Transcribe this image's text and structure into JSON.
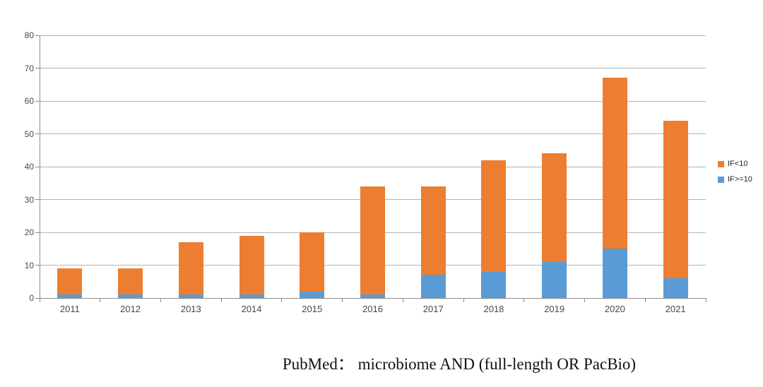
{
  "chart_data": {
    "type": "bar",
    "stacked": true,
    "title": "",
    "xlabel": "",
    "ylabel": "",
    "categories": [
      "2011",
      "2012",
      "2013",
      "2014",
      "2015",
      "2016",
      "2017",
      "2018",
      "2019",
      "2020",
      "2021"
    ],
    "series": [
      {
        "name": "IF>=10",
        "color": "#5B9BD5",
        "values": [
          1,
          1,
          1,
          1,
          2,
          1,
          7,
          8,
          11,
          15,
          6
        ]
      },
      {
        "name": "IF<10",
        "color": "#ED7D31",
        "values": [
          8,
          8,
          16,
          18,
          18,
          33,
          27,
          34,
          33,
          52,
          48
        ]
      }
    ],
    "totals": [
      9,
      9,
      17,
      19,
      20,
      34,
      34,
      42,
      44,
      67,
      54
    ],
    "ylim": [
      0,
      80
    ],
    "ytick_interval": 10,
    "yticks": [
      0,
      10,
      20,
      30,
      40,
      50,
      60,
      70,
      80
    ],
    "grid": true,
    "gridline_color": "#b3b3b3",
    "axis_color": "#8c8c8c",
    "tick_label_color": "#484848",
    "legend_position": "right",
    "legend": [
      {
        "label": "IF<10",
        "color": "#ED7D31"
      },
      {
        "label": "IF>=10",
        "color": "#5B9BD5"
      }
    ]
  },
  "caption": "PubMed： microbiome AND (full-length OR PacBio)"
}
